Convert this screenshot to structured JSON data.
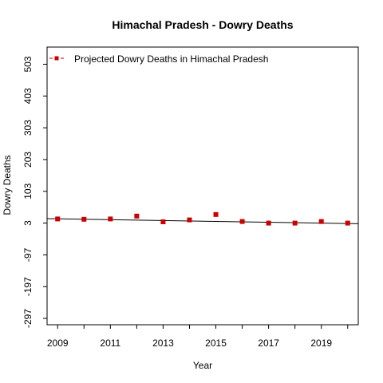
{
  "chart_data": {
    "type": "scatter",
    "title": "Himachal Pradesh  -  Dowry Deaths",
    "xlabel": "Year",
    "ylabel": "Dowry Deaths",
    "xlim": [
      2008.6,
      2020.4
    ],
    "ylim": [
      -317,
      557
    ],
    "x_ticks": [
      2009,
      2010,
      2011,
      2012,
      2013,
      2014,
      2015,
      2016,
      2017,
      2018,
      2019,
      2020
    ],
    "x_tick_labels": [
      "2009",
      "2011",
      "2013",
      "2015",
      "2017",
      "2019"
    ],
    "x_tick_label_values": [
      2009,
      2011,
      2013,
      2015,
      2017,
      2019
    ],
    "y_ticks": [
      -297,
      -197,
      -97,
      3,
      103,
      203,
      303,
      403,
      503
    ],
    "y_tick_labels": [
      "-297",
      "-197",
      "-97",
      "3",
      "103",
      "203",
      "303",
      "403",
      "503"
    ],
    "grid": false,
    "legend_position": "top-left",
    "series": [
      {
        "name": "Projected  Dowry Deaths  in  Himachal Pradesh",
        "color": "#cc0000",
        "marker": "square",
        "x": [
          2009,
          2010,
          2011,
          2012,
          2013,
          2014,
          2015,
          2016,
          2017,
          2018,
          2019,
          2020
        ],
        "y": [
          16,
          15,
          16,
          25,
          7,
          13,
          30,
          8,
          3,
          3,
          8,
          3
        ]
      }
    ],
    "trend_line": {
      "color": "#000000",
      "x": [
        2008.6,
        2020.4
      ],
      "y": [
        17,
        1
      ]
    }
  }
}
